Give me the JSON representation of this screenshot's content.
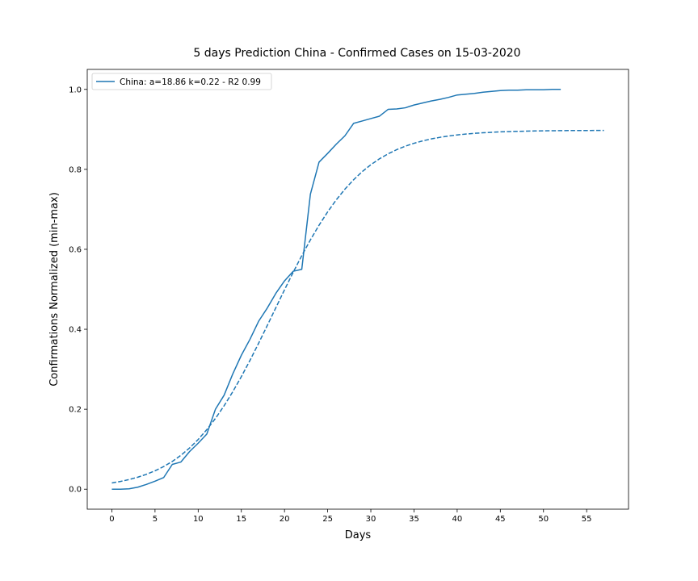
{
  "chart_data": {
    "type": "line",
    "title": "5 days Prediction China - Confirmed Cases on 15-03-2020",
    "xlabel": "Days",
    "ylabel": "Confirmations Normalized (min-max)",
    "xlim": [
      -2.85,
      59.85
    ],
    "ylim": [
      -0.05,
      1.05
    ],
    "xticks": [
      0,
      5,
      10,
      15,
      20,
      25,
      30,
      35,
      40,
      45,
      50,
      55
    ],
    "yticks": [
      0.0,
      0.2,
      0.4,
      0.6,
      0.8,
      1.0
    ],
    "ytick_labels": [
      "0.0",
      "0.2",
      "0.4",
      "0.6",
      "0.8",
      "1.0"
    ],
    "grid": false,
    "legend_position": "top-left",
    "line_color": "#1f77b4",
    "series": [
      {
        "name": "China: a=18.86 k=0.22 - R2 0.99",
        "style": "solid",
        "x": [
          0,
          1,
          2,
          3,
          4,
          5,
          6,
          7,
          8,
          9,
          10,
          11,
          12,
          13,
          14,
          15,
          16,
          17,
          18,
          19,
          20,
          21,
          22,
          23,
          24,
          25,
          26,
          27,
          28,
          29,
          30,
          31,
          32,
          33,
          34,
          35,
          36,
          37,
          38,
          39,
          40,
          41,
          42,
          43,
          44,
          45,
          46,
          47,
          48,
          49,
          50,
          51,
          52
        ],
        "y": [
          0.0,
          0.0,
          0.001,
          0.005,
          0.012,
          0.02,
          0.029,
          0.062,
          0.068,
          0.094,
          0.115,
          0.138,
          0.2,
          0.235,
          0.288,
          0.335,
          0.375,
          0.42,
          0.453,
          0.49,
          0.521,
          0.545,
          0.55,
          0.738,
          0.818,
          0.84,
          0.863,
          0.884,
          0.915,
          0.921,
          0.927,
          0.933,
          0.95,
          0.951,
          0.954,
          0.961,
          0.966,
          0.971,
          0.975,
          0.98,
          0.986,
          0.988,
          0.99,
          0.993,
          0.995,
          0.997,
          0.998,
          0.998,
          0.999,
          0.999,
          0.999,
          1.0,
          1.0
        ]
      },
      {
        "style": "dashed",
        "x": [
          0,
          1,
          2,
          3,
          4,
          5,
          6,
          7,
          8,
          9,
          10,
          11,
          12,
          13,
          14,
          15,
          16,
          17,
          18,
          19,
          20,
          21,
          22,
          23,
          24,
          25,
          26,
          27,
          28,
          29,
          30,
          31,
          32,
          33,
          34,
          35,
          36,
          37,
          38,
          39,
          40,
          41,
          42,
          43,
          44,
          45,
          46,
          47,
          48,
          49,
          50,
          51,
          52,
          53,
          54,
          55,
          56,
          57
        ],
        "y": [
          0.0156,
          0.0194,
          0.0242,
          0.03,
          0.0372,
          0.046,
          0.0566,
          0.0694,
          0.0848,
          0.103,
          0.1243,
          0.149,
          0.177,
          0.2086,
          0.2435,
          0.2815,
          0.3222,
          0.365,
          0.4093,
          0.4541,
          0.4987,
          0.5423,
          0.5841,
          0.6236,
          0.6602,
          0.6937,
          0.7238,
          0.7505,
          0.7739,
          0.7942,
          0.8116,
          0.8264,
          0.8388,
          0.8493,
          0.858,
          0.8652,
          0.8712,
          0.8761,
          0.8801,
          0.8834,
          0.8861,
          0.8883,
          0.8901,
          0.8915,
          0.8927,
          0.8937,
          0.8944,
          0.8951,
          0.8956,
          0.896,
          0.8963,
          0.8966,
          0.8968,
          0.897,
          0.8971,
          0.8972,
          0.8973,
          0.8974
        ]
      }
    ]
  }
}
